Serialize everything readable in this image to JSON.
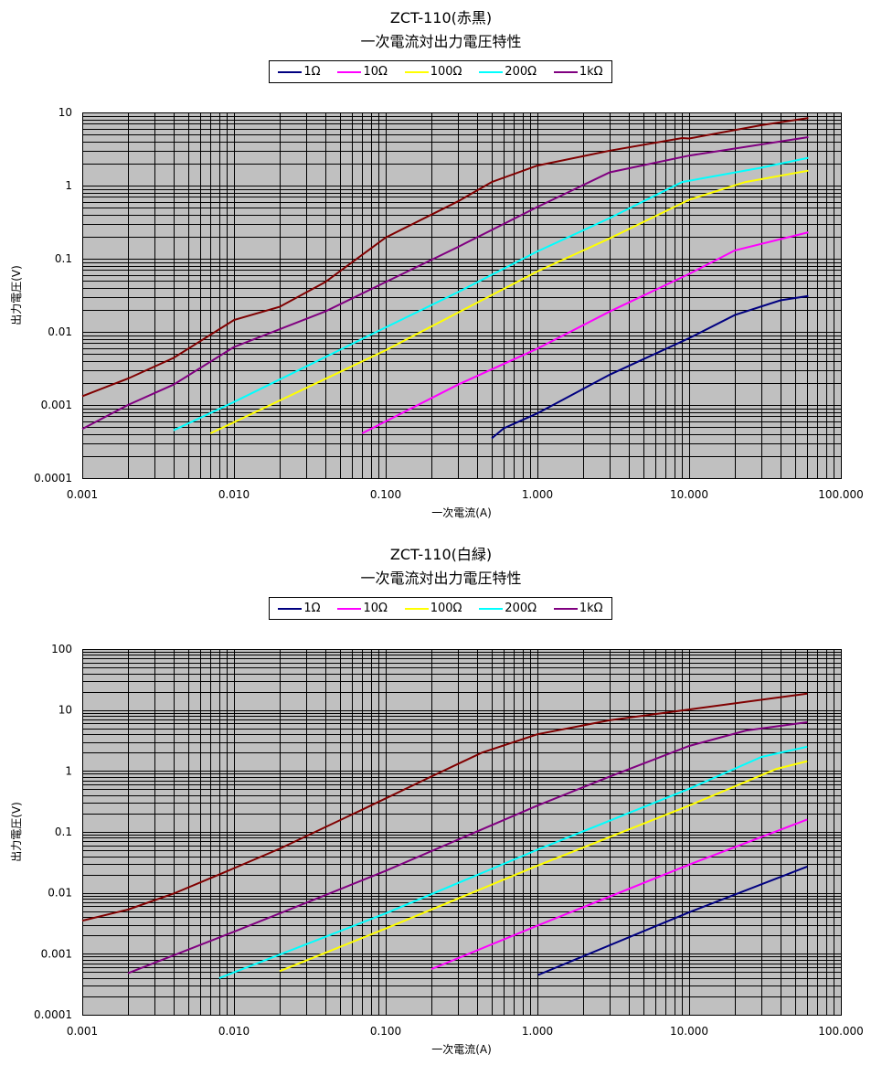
{
  "chart_data": [
    {
      "type": "line",
      "title": "ZCT-110(赤黒)",
      "subtitle": "一次電流対出力電圧特性",
      "xlabel": "一次電流(A)",
      "ylabel": "出力電圧(V)",
      "xscale": "log",
      "yscale": "log",
      "xlim": [
        0.001,
        100
      ],
      "ylim": [
        0.0001,
        10
      ],
      "xticks": [
        "0.001",
        "0.010",
        "0.100",
        "1.000",
        "10.000",
        "100.000"
      ],
      "yticks": [
        "0.0001",
        "0.001",
        "0.01",
        "0.1",
        "1",
        "10"
      ],
      "grid": true,
      "legend_position": "top-center",
      "series": [
        {
          "name": "1Ω",
          "color": "#000080",
          "in_legend": true,
          "x": [
            0.5,
            0.6,
            1,
            3,
            10,
            20,
            40,
            61
          ],
          "y": [
            0.00035,
            0.00048,
            0.00077,
            0.0026,
            0.0082,
            0.017,
            0.027,
            0.031
          ]
        },
        {
          "name": "10Ω",
          "color": "#ff00ff",
          "in_legend": true,
          "x": [
            0.07,
            0.3,
            1,
            3,
            10,
            20,
            61
          ],
          "y": [
            0.00041,
            0.0019,
            0.0059,
            0.019,
            0.062,
            0.13,
            0.23
          ]
        },
        {
          "name": "100Ω",
          "color": "#ffff00",
          "in_legend": true,
          "x": [
            0.007,
            0.01,
            0.1,
            0.34,
            1,
            3,
            10,
            23.5,
            61
          ],
          "y": [
            0.00041,
            0.00058,
            0.0056,
            0.021,
            0.067,
            0.19,
            0.64,
            1.12,
            1.6
          ]
        },
        {
          "name": "200Ω",
          "color": "#00ffff",
          "in_legend": true,
          "x": [
            0.004,
            0.01,
            0.1,
            0.3,
            1,
            3,
            9,
            30,
            61
          ],
          "y": [
            0.00045,
            0.0011,
            0.0115,
            0.035,
            0.126,
            0.36,
            1.12,
            1.76,
            2.4
          ]
        },
        {
          "name": "1kΩ",
          "color": "#800080",
          "in_legend": true,
          "x": [
            0.001,
            0.002,
            0.004,
            0.01,
            0.04,
            0.1,
            0.3,
            1,
            3,
            10,
            61
          ],
          "y": [
            0.00047,
            0.001,
            0.0019,
            0.0062,
            0.019,
            0.048,
            0.145,
            0.51,
            1.52,
            2.57,
            4.6
          ]
        },
        {
          "name": "",
          "color": "#800000",
          "in_legend": false,
          "x": [
            0.001,
            0.002,
            0.004,
            0.01,
            0.02,
            0.04,
            0.1,
            0.3,
            0.5,
            1,
            3,
            9,
            10,
            30,
            61
          ],
          "y": [
            0.00132,
            0.0023,
            0.0044,
            0.0145,
            0.022,
            0.048,
            0.195,
            0.61,
            1.12,
            1.88,
            3.0,
            4.47,
            4.4,
            6.7,
            8.4
          ]
        }
      ]
    },
    {
      "type": "line",
      "title": "ZCT-110(白緑)",
      "subtitle": "一次電流対出力電圧特性",
      "xlabel": "一次電流(A)",
      "ylabel": "出力電圧(V)",
      "xscale": "log",
      "yscale": "log",
      "xlim": [
        0.001,
        100
      ],
      "ylim": [
        0.0001,
        100
      ],
      "xticks": [
        "0.001",
        "0.010",
        "0.100",
        "1.000",
        "10.000",
        "100.000"
      ],
      "yticks": [
        "0.0001",
        "0.001",
        "0.01",
        "0.1",
        "1",
        "10",
        "100"
      ],
      "grid": true,
      "legend_position": "top-center",
      "series": [
        {
          "name": "1Ω",
          "color": "#000080",
          "in_legend": true,
          "x": [
            1.01,
            10,
            60
          ],
          "y": [
            0.00045,
            0.0048,
            0.027
          ]
        },
        {
          "name": "10Ω",
          "color": "#ff00ff",
          "in_legend": true,
          "x": [
            0.2,
            1,
            10,
            60
          ],
          "y": [
            0.00056,
            0.0029,
            0.029,
            0.16
          ]
        },
        {
          "name": "100Ω",
          "color": "#ffff00",
          "in_legend": true,
          "x": [
            0.02,
            0.1,
            1,
            10,
            37.6,
            60
          ],
          "y": [
            0.00052,
            0.0026,
            0.028,
            0.27,
            1.08,
            1.45
          ]
        },
        {
          "name": "200Ω",
          "color": "#00ffff",
          "in_legend": true,
          "x": [
            0.008,
            0.1,
            1,
            10,
            30,
            60
          ],
          "y": [
            0.0004,
            0.0046,
            0.051,
            0.51,
            1.7,
            2.5
          ]
        },
        {
          "name": "1kΩ",
          "color": "#800080",
          "in_legend": true,
          "x": [
            0.002,
            0.01,
            0.1,
            0.39,
            1,
            3,
            10,
            23.7,
            60
          ],
          "y": [
            0.00048,
            0.0023,
            0.023,
            0.099,
            0.27,
            0.81,
            2.57,
            4.6,
            6.3
          ]
        },
        {
          "name": "",
          "color": "#800000",
          "in_legend": false,
          "x": [
            0.001,
            0.002,
            0.004,
            0.008,
            0.02,
            0.067,
            0.2,
            0.43,
            1,
            3,
            10,
            60
          ],
          "y": [
            0.0035,
            0.0053,
            0.0097,
            0.02,
            0.053,
            0.22,
            0.81,
            2.0,
            4.0,
            6.8,
            10.2,
            18.6
          ]
        }
      ]
    }
  ]
}
